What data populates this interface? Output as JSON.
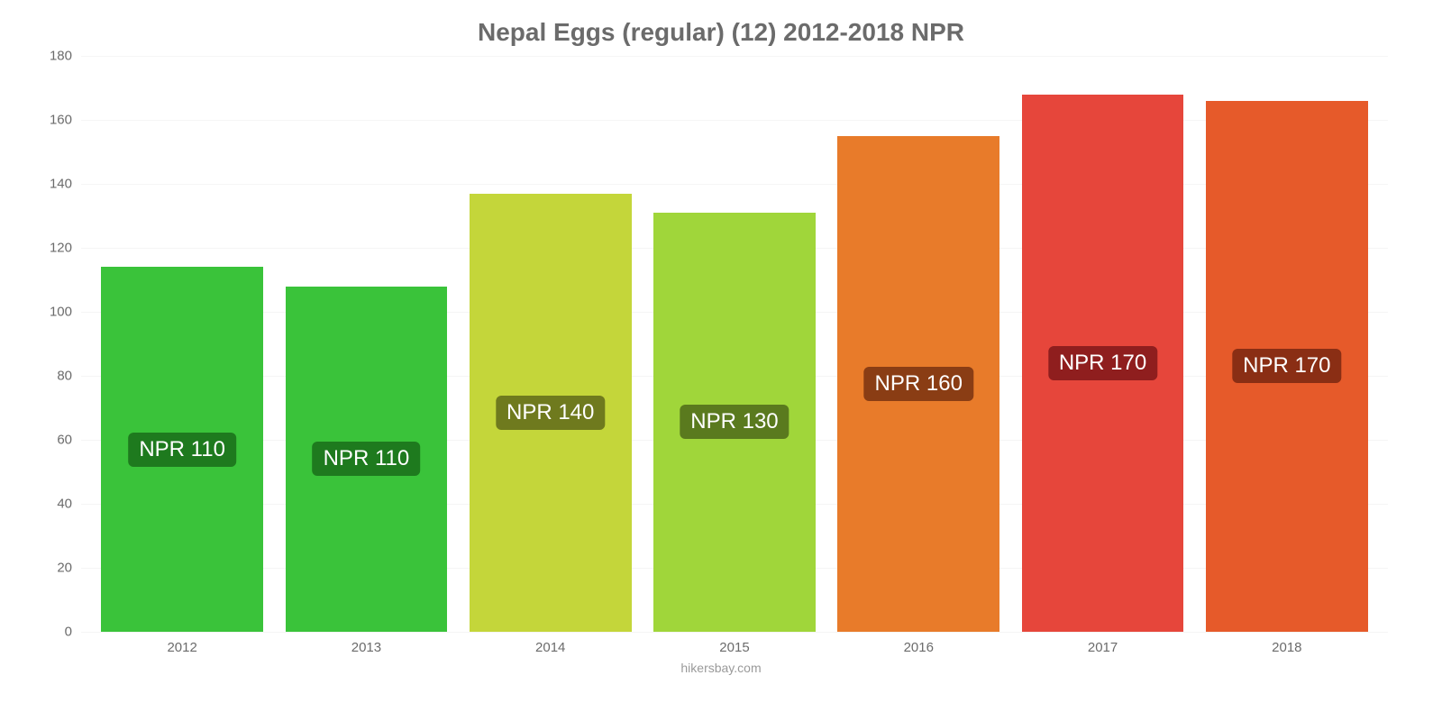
{
  "chart": {
    "type": "bar",
    "title": "Nepal Eggs (regular) (12) 2012-2018 NPR",
    "title_fontsize": 28,
    "title_color": "#6b6b6b",
    "background_color": "#ffffff",
    "grid_color": "#f5f5f5",
    "axis_line_color": "#d9d9d9",
    "tick_color": "#6b6b6b",
    "tick_fontsize": 15,
    "bar_label_fontsize": 24,
    "bar_label_text_color": "#ffffff",
    "bar_width_pct": 88,
    "ylim": [
      0,
      180
    ],
    "ytick_step": 20,
    "yticks": [
      0,
      20,
      40,
      60,
      80,
      100,
      120,
      140,
      160,
      180
    ],
    "categories": [
      "2012",
      "2013",
      "2014",
      "2015",
      "2016",
      "2017",
      "2018"
    ],
    "values": [
      114,
      108,
      137,
      131,
      155,
      168,
      166
    ],
    "value_labels": [
      "NPR 110",
      "NPR 110",
      "NPR 140",
      "NPR 130",
      "NPR 160",
      "NPR 170",
      "NPR 170"
    ],
    "bar_colors": [
      "#3ac33a",
      "#3ac33a",
      "#c4d63a",
      "#a0d63a",
      "#e87b2a",
      "#e6463b",
      "#e65a2a"
    ],
    "label_badge_colors": [
      "#1e7a1e",
      "#1e7a1e",
      "#6f7a1e",
      "#5a7a1e",
      "#8a3d14",
      "#8f1e1e",
      "#8a2e14"
    ],
    "credit": "hikersbay.com",
    "credit_color": "#9a9a9a",
    "credit_fontsize": 14
  }
}
